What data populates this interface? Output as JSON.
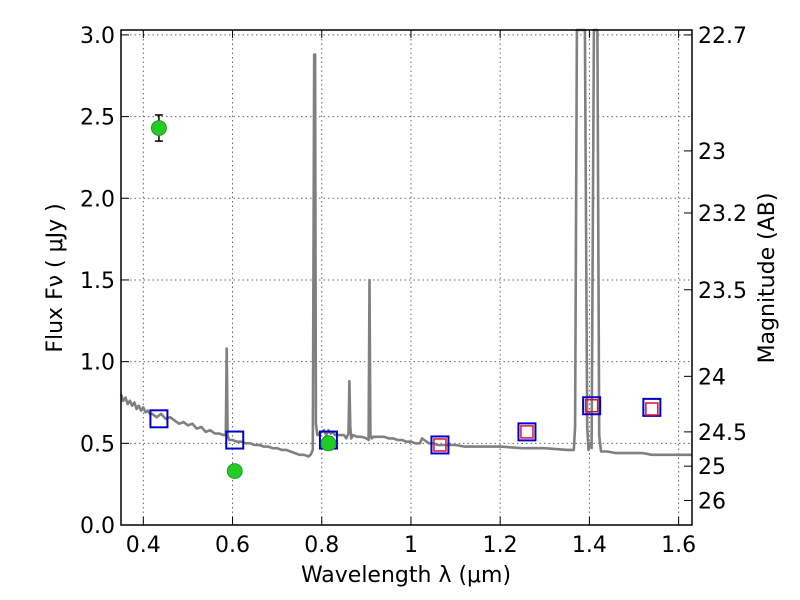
{
  "chart_data": {
    "type": "line",
    "title": "",
    "xlabel": "Wavelength  λ (μm)",
    "ylabel": "Flux  Fν  ( μJy )",
    "y2label": "Magnitude (AB)",
    "xlim": [
      0.35,
      1.63
    ],
    "ylim": [
      0.0,
      3.03
    ],
    "xticks": [
      0.4,
      0.6,
      0.8,
      1.0,
      1.2,
      1.4,
      1.6
    ],
    "xtick_labels": [
      "0.4",
      "0.6",
      "0.8",
      "1",
      "1.2",
      "1.4",
      "1.6"
    ],
    "yticks": [
      0.0,
      0.5,
      1.0,
      1.5,
      2.0,
      2.5,
      3.0
    ],
    "ytick_labels": [
      "0.0",
      "0.5",
      "1.0",
      "1.5",
      "2.0",
      "2.5",
      "3.0"
    ],
    "y2ticks": [
      {
        "label": "22.7",
        "flux": 3.0
      },
      {
        "label": "23",
        "flux": 2.29
      },
      {
        "label": "23.2",
        "flux": 1.91
      },
      {
        "label": "23.5",
        "flux": 1.44
      },
      {
        "label": "24",
        "flux": 0.91
      },
      {
        "label": "24.5",
        "flux": 0.57
      },
      {
        "label": "25",
        "flux": 0.36
      },
      {
        "label": "26",
        "flux": 0.15
      }
    ],
    "grid": true,
    "colors": {
      "spectrum": "#808080",
      "model_box": "#0000cc",
      "observed_box": "#dd1133",
      "photometry": "#22cc22",
      "errorbar": "#000000",
      "frame": "#000000",
      "grid": "#666666"
    },
    "series": [
      {
        "kind": "spectrum",
        "x": [
          0.35,
          0.355,
          0.36,
          0.365,
          0.37,
          0.375,
          0.38,
          0.385,
          0.39,
          0.395,
          0.4,
          0.405,
          0.41,
          0.415,
          0.42,
          0.43,
          0.44,
          0.45,
          0.46,
          0.47,
          0.48,
          0.49,
          0.5,
          0.51,
          0.52,
          0.53,
          0.54,
          0.55,
          0.56,
          0.57,
          0.58,
          0.585,
          0.587,
          0.589,
          0.591,
          0.593,
          0.6,
          0.61,
          0.62,
          0.63,
          0.64,
          0.65,
          0.66,
          0.67,
          0.68,
          0.69,
          0.7,
          0.71,
          0.72,
          0.73,
          0.74,
          0.75,
          0.76,
          0.77,
          0.775,
          0.78,
          0.783,
          0.785,
          0.787,
          0.79,
          0.795,
          0.8,
          0.805,
          0.81,
          0.815,
          0.82,
          0.825,
          0.83,
          0.84,
          0.85,
          0.855,
          0.86,
          0.862,
          0.864,
          0.866,
          0.87,
          0.88,
          0.89,
          0.9,
          0.905,
          0.907,
          0.909,
          0.912,
          0.915,
          0.92,
          0.93,
          0.94,
          0.95,
          0.96,
          0.97,
          0.98,
          0.99,
          1.0,
          1.01,
          1.02,
          1.025,
          1.03,
          1.035,
          1.04,
          1.05,
          1.06,
          1.08,
          1.1,
          1.12,
          1.15,
          1.18,
          1.2,
          1.25,
          1.3,
          1.35,
          1.365,
          1.368,
          1.372,
          1.38,
          1.385,
          1.39,
          1.395,
          1.398,
          1.401,
          1.405,
          1.41,
          1.418,
          1.422,
          1.426,
          1.43,
          1.44,
          1.46,
          1.48,
          1.5,
          1.52,
          1.54,
          1.56,
          1.58,
          1.6,
          1.63
        ],
        "y": [
          0.8,
          0.76,
          0.78,
          0.74,
          0.76,
          0.73,
          0.75,
          0.71,
          0.73,
          0.7,
          0.72,
          0.69,
          0.7,
          0.68,
          0.68,
          0.66,
          0.68,
          0.65,
          0.66,
          0.64,
          0.62,
          0.63,
          0.61,
          0.62,
          0.59,
          0.6,
          0.57,
          0.58,
          0.56,
          0.56,
          0.55,
          0.55,
          1.08,
          0.55,
          0.53,
          0.52,
          0.52,
          0.51,
          0.51,
          0.5,
          0.5,
          0.49,
          0.49,
          0.48,
          0.48,
          0.47,
          0.47,
          0.46,
          0.46,
          0.45,
          0.44,
          0.43,
          0.43,
          0.42,
          0.43,
          0.46,
          2.88,
          2.88,
          0.62,
          0.55,
          0.56,
          0.57,
          0.58,
          0.55,
          0.58,
          0.56,
          0.57,
          0.55,
          0.55,
          0.55,
          0.53,
          0.56,
          0.88,
          0.6,
          0.53,
          0.55,
          0.54,
          0.54,
          0.53,
          0.52,
          1.5,
          0.55,
          0.53,
          0.54,
          0.54,
          0.54,
          0.54,
          0.53,
          0.53,
          0.52,
          0.52,
          0.51,
          0.51,
          0.5,
          0.5,
          0.53,
          0.52,
          0.51,
          0.5,
          0.5,
          0.49,
          0.49,
          0.49,
          0.48,
          0.48,
          0.48,
          0.48,
          0.47,
          0.47,
          0.46,
          0.46,
          0.6,
          3.03,
          3.03,
          3.03,
          3.03,
          0.6,
          0.46,
          0.5,
          0.47,
          3.03,
          3.03,
          0.55,
          0.45,
          0.45,
          0.45,
          0.44,
          0.44,
          0.44,
          0.44,
          0.43,
          0.43,
          0.43,
          0.43,
          0.43
        ]
      },
      {
        "kind": "model_boxes",
        "x": [
          0.435,
          0.605,
          0.815,
          1.065,
          1.26,
          1.405,
          1.54
        ],
        "y": [
          0.65,
          0.52,
          0.52,
          0.49,
          0.57,
          0.73,
          0.72
        ]
      },
      {
        "kind": "observed_boxes",
        "x": [
          1.065,
          1.26,
          1.405,
          1.54
        ],
        "y": [
          0.49,
          0.57,
          0.73,
          0.71
        ]
      },
      {
        "kind": "photometry",
        "x": [
          0.435,
          0.605,
          0.815
        ],
        "y": [
          2.43,
          0.33,
          0.5
        ],
        "yerr": [
          0.08,
          0.03,
          0.04
        ]
      }
    ]
  }
}
